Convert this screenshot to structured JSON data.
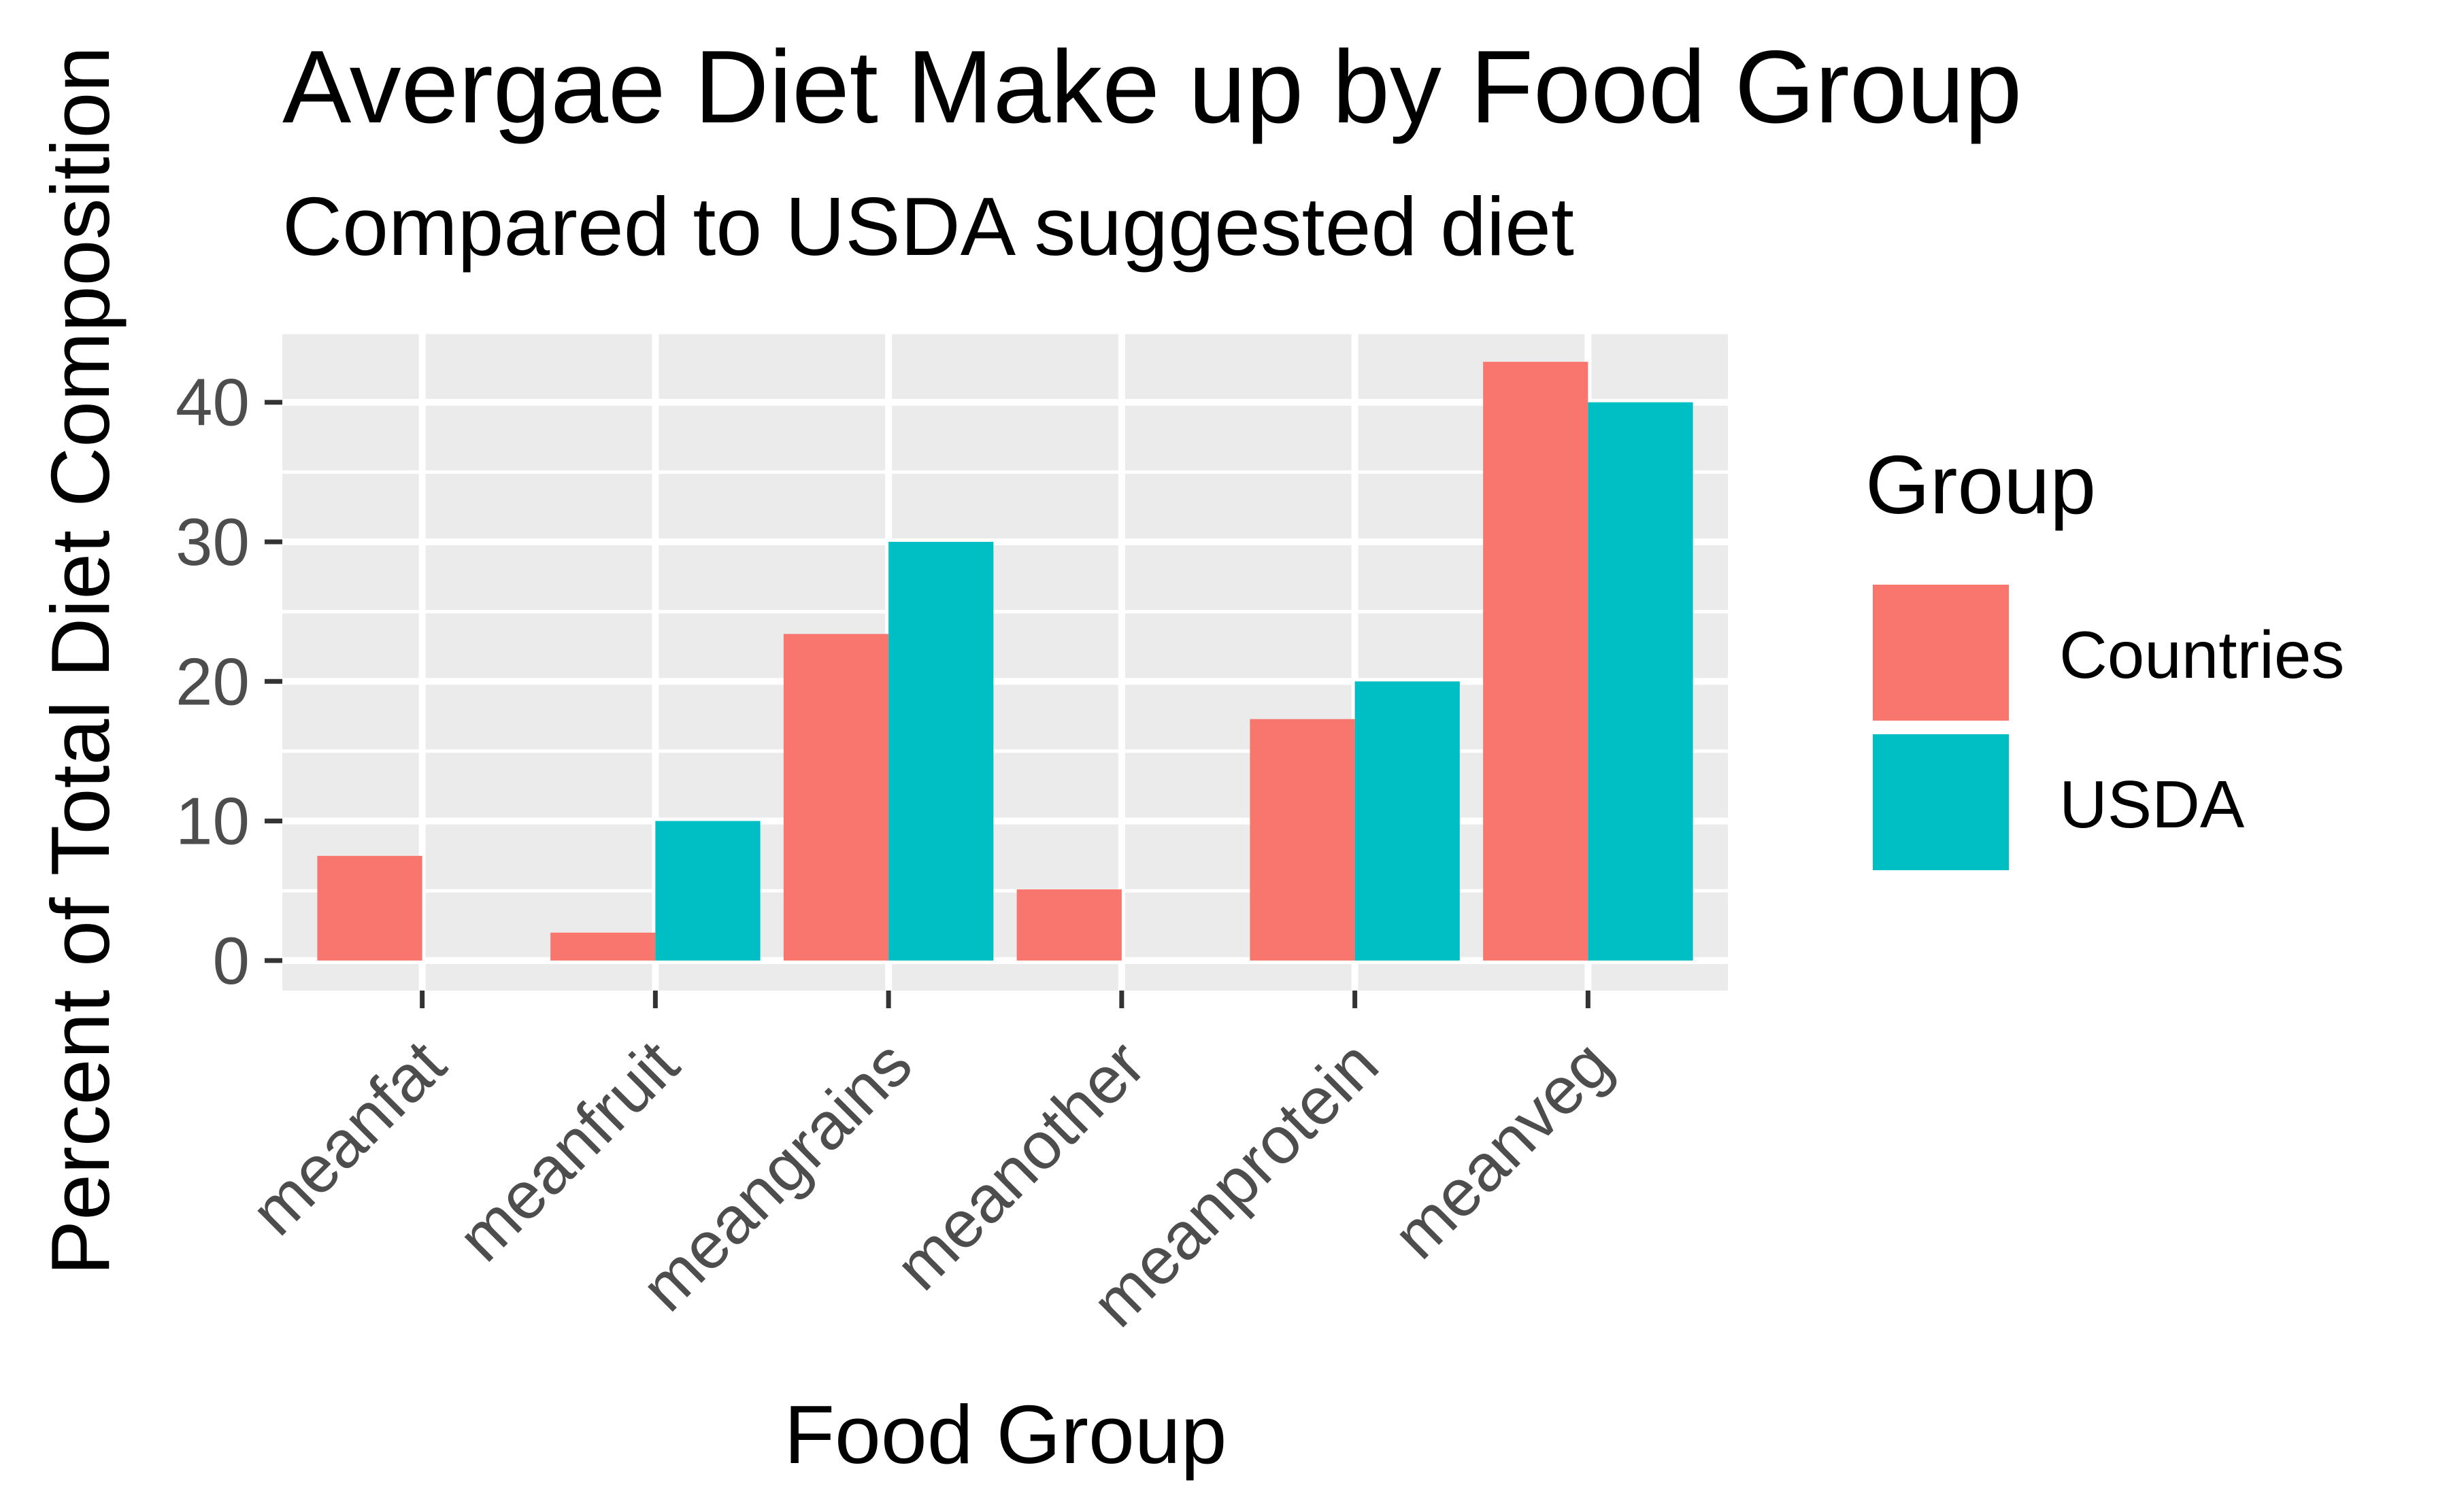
{
  "chart_data": {
    "type": "bar",
    "title": "Avergae Diet Make up by Food Group",
    "subtitle": "Compared to USDA suggested diet",
    "xlabel": "Food Group",
    "ylabel": "Percent of Total Diet Composition",
    "categories": [
      "meanfat",
      "meanfruit",
      "meangrains",
      "meanother",
      "meanprotein",
      "meanveg"
    ],
    "series": [
      {
        "name": "Countries",
        "color": "#F8766D",
        "values": [
          7.5,
          2.0,
          23.4,
          5.1,
          17.3,
          42.9
        ]
      },
      {
        "name": "USDA",
        "color": "#00BFC4",
        "values": [
          null,
          10,
          30,
          null,
          20,
          40
        ]
      }
    ],
    "yticks": [
      0,
      10,
      20,
      30,
      40
    ],
    "ylim": [
      -2.15,
      45.1
    ],
    "grid": true,
    "panel_background": "#EBEBEB",
    "legend": {
      "title": "Group",
      "position": "right"
    }
  }
}
